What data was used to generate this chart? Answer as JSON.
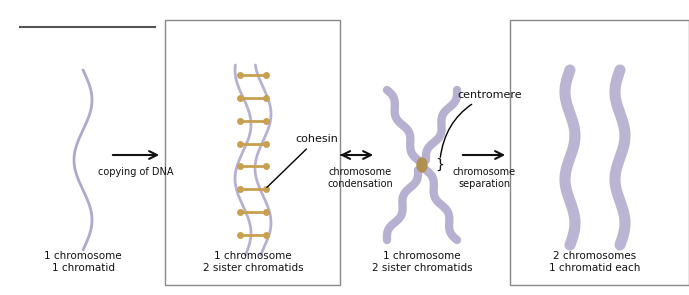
{
  "bg_color": "#ffffff",
  "chr_color": "#b0a8cc",
  "cohesin_color": "#c8a050",
  "centromere_color": "#b09050",
  "text_color": "#111111",
  "arrow_color": "#111111",
  "panel_labels": [
    "1 chromosome\n1 chromatid",
    "1 chromosome\n2 sister chromatids",
    "1 chromosome\n2 sister chromatids",
    "2 chromosomes\n1 chromatid each"
  ],
  "arrow_labels": [
    "copying of DNA",
    "chromosome\ncondensation",
    "chromosome\nseparation"
  ],
  "annotations": [
    "cohesin",
    "centromere"
  ],
  "figsize": [
    6.89,
    2.95
  ],
  "dpi": 100
}
